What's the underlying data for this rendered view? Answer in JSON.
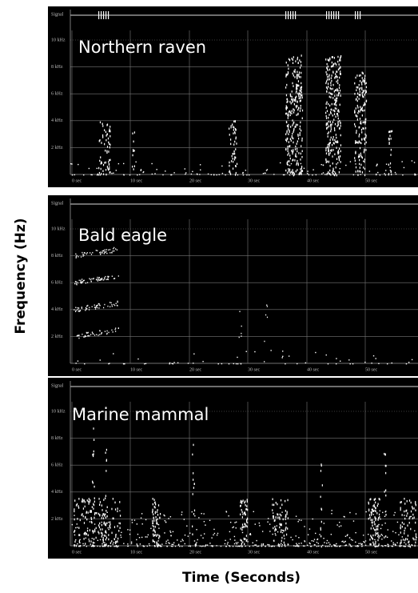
{
  "y_axis_label": "Frequency (Hz)",
  "x_axis_label": "Time (Seconds)",
  "panels": [
    {
      "label": "Northern raven",
      "signal_label": "Signal",
      "frequency_ticks": [
        "10 kHz",
        "8 kHz",
        "6 kHz",
        "4 kHz",
        "2 kHz"
      ],
      "time_ticks": [
        "0 sec",
        "10 sec",
        "20 sec",
        "30 sec",
        "40 sec",
        "50 sec"
      ]
    },
    {
      "label": "Bald eagle",
      "signal_label": "Signal",
      "frequency_ticks": [
        "10 kHz",
        "8 kHz",
        "6 kHz",
        "4 kHz",
        "2 kHz"
      ],
      "time_ticks": [
        "0 sec",
        "10 sec",
        "20 sec",
        "30 sec",
        "40 sec",
        "50 sec"
      ]
    },
    {
      "label": "Marine mammal",
      "signal_label": "Signal",
      "frequency_ticks": [
        "10 kHz",
        "8 kHz",
        "6 kHz",
        "4 kHz",
        "2 kHz"
      ],
      "time_ticks": [
        "0 sec",
        "10 sec",
        "20 sec",
        "30 sec",
        "40 sec",
        "50 sec"
      ]
    }
  ]
}
